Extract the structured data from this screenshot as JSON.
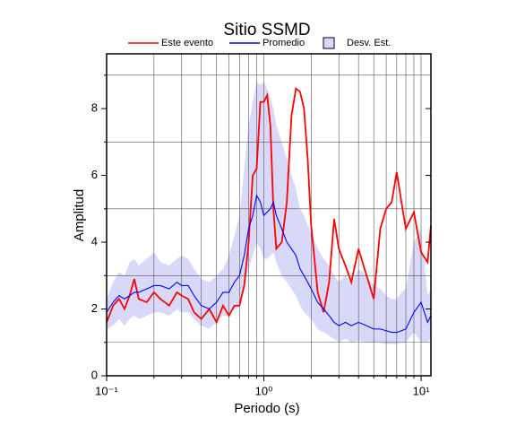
{
  "chart_data": {
    "type": "line",
    "title": "Sitio SSMD",
    "x_label": "Periodo (s)",
    "y_label": "Amplitud",
    "log_x": true,
    "grid": true,
    "x": [
      0.1,
      0.11,
      0.12,
      0.13,
      0.14,
      0.15,
      0.16,
      0.18,
      0.2,
      0.22,
      0.25,
      0.28,
      0.3,
      0.33,
      0.36,
      0.4,
      0.45,
      0.5,
      0.55,
      0.6,
      0.65,
      0.7,
      0.75,
      0.8,
      0.85,
      0.9,
      0.95,
      1.0,
      1.05,
      1.1,
      1.15,
      1.2,
      1.3,
      1.4,
      1.5,
      1.6,
      1.7,
      1.8,
      1.9,
      2.0,
      2.2,
      2.4,
      2.6,
      2.8,
      3.0,
      3.3,
      3.6,
      4.0,
      4.5,
      5.0,
      5.5,
      6.0,
      6.5,
      7.0,
      7.5,
      8.0,
      9.0,
      10,
      11,
      11.55
    ],
    "series": [
      {
        "name": "Este evento",
        "color": "#ff0000",
        "values": [
          1.6,
          2.1,
          2.3,
          2.0,
          2.4,
          2.9,
          2.3,
          2.2,
          2.5,
          2.3,
          2.1,
          2.5,
          2.4,
          2.3,
          1.9,
          1.7,
          2.0,
          1.6,
          2.1,
          1.8,
          2.1,
          2.1,
          2.7,
          4.0,
          6.0,
          6.2,
          8.2,
          8.2,
          8.4,
          7.5,
          5.0,
          3.8,
          4.0,
          5.2,
          7.8,
          8.6,
          8.5,
          8.0,
          6.5,
          4.5,
          2.5,
          1.9,
          2.8,
          4.7,
          3.8,
          3.3,
          2.8,
          3.8,
          3.0,
          2.3,
          4.4,
          5.0,
          5.2,
          6.1,
          5.2,
          4.4,
          4.9,
          3.7,
          3.4,
          4.5
        ]
      },
      {
        "name": "Promedio",
        "color": "#0000ff",
        "values": [
          1.9,
          2.2,
          2.4,
          2.3,
          2.4,
          2.5,
          2.5,
          2.6,
          2.7,
          2.7,
          2.6,
          2.8,
          2.7,
          2.7,
          2.4,
          2.1,
          2.0,
          2.2,
          2.5,
          2.5,
          2.8,
          3.0,
          3.6,
          4.4,
          4.8,
          5.4,
          5.2,
          4.8,
          4.9,
          5.0,
          5.2,
          4.8,
          4.4,
          4.0,
          3.8,
          3.6,
          3.2,
          3.0,
          2.8,
          2.6,
          2.2,
          2.0,
          1.8,
          1.6,
          1.5,
          1.6,
          1.5,
          1.6,
          1.5,
          1.4,
          1.4,
          1.35,
          1.3,
          1.3,
          1.35,
          1.4,
          1.9,
          2.2,
          1.6,
          1.8
        ]
      },
      {
        "name": "Desv. Est.",
        "color": "#d8d8f8",
        "upper": [
          2.3,
          2.8,
          3.1,
          3.0,
          3.4,
          3.5,
          3.3,
          3.5,
          3.7,
          3.4,
          3.3,
          3.5,
          3.6,
          3.5,
          3.2,
          2.9,
          2.8,
          3.0,
          3.2,
          3.6,
          4.2,
          4.8,
          6.2,
          7.5,
          8.2,
          8.8,
          8.7,
          8.8,
          8.6,
          8.3,
          8.0,
          7.5,
          7.0,
          6.5,
          6.0,
          5.6,
          5.0,
          4.8,
          4.5,
          4.3,
          3.8,
          3.5,
          3.3,
          3.0,
          2.8,
          3.0,
          2.8,
          3.2,
          3.0,
          2.7,
          2.6,
          2.4,
          2.3,
          2.3,
          2.5,
          2.6,
          4.0,
          4.4,
          2.4,
          2.6
        ],
        "lower": [
          1.4,
          1.5,
          1.7,
          1.5,
          1.7,
          1.8,
          1.7,
          1.8,
          1.9,
          1.9,
          1.8,
          2.0,
          1.9,
          1.9,
          1.7,
          1.5,
          1.4,
          1.6,
          1.8,
          1.8,
          2.0,
          2.2,
          2.6,
          3.2,
          3.6,
          4.0,
          3.8,
          3.5,
          3.5,
          3.6,
          3.7,
          3.4,
          3.0,
          2.8,
          2.6,
          2.4,
          2.1,
          1.9,
          1.8,
          1.7,
          1.4,
          1.3,
          1.2,
          1.1,
          1.0,
          1.1,
          1.0,
          1.05,
          1.0,
          1.0,
          1.0,
          0.95,
          0.95,
          0.95,
          1.0,
          1.0,
          1.3,
          1.0,
          1.0,
          1.1
        ]
      }
    ],
    "xlim": [
      0.1,
      11.55
    ],
    "ylim": [
      0,
      9.64
    ],
    "xticks": [
      {
        "value": 0.1,
        "label": "10⁻¹"
      },
      {
        "value": 1,
        "label": "10⁰"
      },
      {
        "value": 10,
        "label": "10¹"
      }
    ],
    "xminor": [
      0.2,
      0.3,
      0.4,
      0.5,
      0.6,
      0.7,
      0.8,
      0.9,
      2,
      3,
      4,
      5,
      6,
      7,
      8,
      9
    ],
    "yticks": [
      0,
      2,
      4,
      6,
      8
    ],
    "yminor": [
      1,
      3,
      5,
      7,
      9
    ]
  }
}
